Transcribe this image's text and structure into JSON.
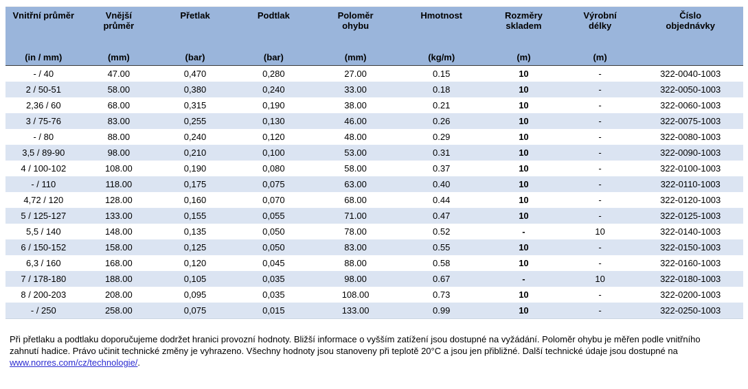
{
  "colors": {
    "header_bg": "#9ab5db",
    "stripe_bg": "#dbe4f2",
    "link": "#2a2ad0"
  },
  "table": {
    "columns": [
      {
        "label": "Vnitřní průměr",
        "unit": "(in / mm)"
      },
      {
        "label": "Vnější\nprůměr",
        "unit": "(mm)"
      },
      {
        "label": "Přetlak",
        "unit": "(bar)"
      },
      {
        "label": "Podtlak",
        "unit": "(bar)"
      },
      {
        "label": "Poloměr\nohybu",
        "unit": "(mm)"
      },
      {
        "label": "Hmotnost",
        "unit": "(kg/m)"
      },
      {
        "label": "Rozměry\nskladem",
        "unit": "(m)"
      },
      {
        "label": "Výrobní\ndélky",
        "unit": "(m)"
      },
      {
        "label": "Číslo\nobjednávky",
        "unit": ""
      }
    ],
    "col_widths_percent": [
      10.3,
      10.1,
      10.6,
      10.7,
      11.5,
      11.8,
      10.5,
      10.2,
      14.3
    ],
    "rows": [
      [
        "- / 40",
        "47.00",
        "0,470",
        "0,280",
        "27.00",
        "0.15",
        "10",
        "-",
        "322-0040-1003"
      ],
      [
        "2 / 50-51",
        "58.00",
        "0,380",
        "0,240",
        "33.00",
        "0.18",
        "10",
        "-",
        "322-0050-1003"
      ],
      [
        "2,36 / 60",
        "68.00",
        "0,315",
        "0,190",
        "38.00",
        "0.21",
        "10",
        "-",
        "322-0060-1003"
      ],
      [
        "3 / 75-76",
        "83.00",
        "0,255",
        "0,130",
        "46.00",
        "0.26",
        "10",
        "-",
        "322-0075-1003"
      ],
      [
        "- / 80",
        "88.00",
        "0,240",
        "0,120",
        "48.00",
        "0.29",
        "10",
        "-",
        "322-0080-1003"
      ],
      [
        "3,5 / 89-90",
        "98.00",
        "0,210",
        "0,100",
        "53.00",
        "0.31",
        "10",
        "-",
        "322-0090-1003"
      ],
      [
        "4 / 100-102",
        "108.00",
        "0,190",
        "0,080",
        "58.00",
        "0.37",
        "10",
        "-",
        "322-0100-1003"
      ],
      [
        "- / 110",
        "118.00",
        "0,175",
        "0,075",
        "63.00",
        "0.40",
        "10",
        "-",
        "322-0110-1003"
      ],
      [
        "4,72 / 120",
        "128.00",
        "0,160",
        "0,070",
        "68.00",
        "0.44",
        "10",
        "-",
        "322-0120-1003"
      ],
      [
        "5 / 125-127",
        "133.00",
        "0,155",
        "0,055",
        "71.00",
        "0.47",
        "10",
        "-",
        "322-0125-1003"
      ],
      [
        "5,5 / 140",
        "148.00",
        "0,135",
        "0,050",
        "78.00",
        "0.52",
        "-",
        "10",
        "322-0140-1003"
      ],
      [
        "6 / 150-152",
        "158.00",
        "0,125",
        "0,050",
        "83.00",
        "0.55",
        "10",
        "-",
        "322-0150-1003"
      ],
      [
        "6,3 / 160",
        "168.00",
        "0,120",
        "0,045",
        "88.00",
        "0.58",
        "10",
        "-",
        "322-0160-1003"
      ],
      [
        "7 / 178-180",
        "188.00",
        "0,105",
        "0,035",
        "98.00",
        "0.67",
        "-",
        "10",
        "322-0180-1003"
      ],
      [
        "8 / 200-203",
        "208.00",
        "0,095",
        "0,035",
        "108.00",
        "0.73",
        "10",
        "-",
        "322-0200-1003"
      ],
      [
        "- / 250",
        "258.00",
        "0,075",
        "0,015",
        "133.00",
        "0.99",
        "10",
        "-",
        "322-0250-1003"
      ]
    ]
  },
  "footer": {
    "text_before_link": "Při přetlaku a podtlaku doporučujeme dodržet hranici provozní hodnoty. Bližší informace o vyšším zatížení jsou dostupné na vyžádání. Poloměr ohybu je měřen podle vnitřního zahnutí hadice. Právo učinit technické změny je vyhrazeno. Všechny hodnoty jsou stanoveny při teplotě 20°C a jsou jen přibližné. Další technické údaje jsou dostupné na ",
    "link_text": "www.norres.com/cz/technologie/",
    "text_after_link": "."
  }
}
